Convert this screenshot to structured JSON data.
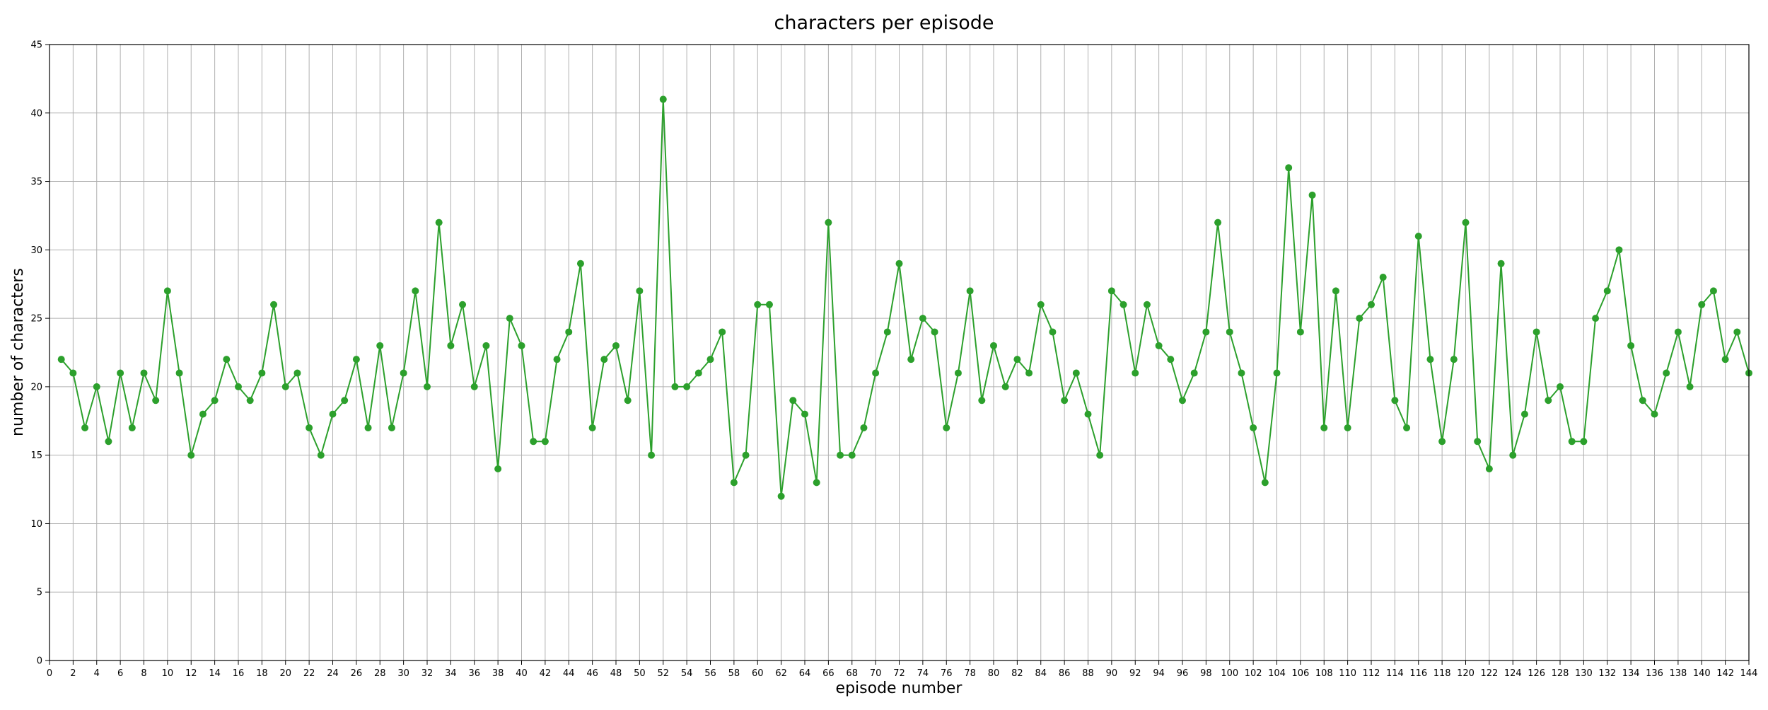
{
  "chart_data": {
    "type": "line",
    "title": "characters per episode",
    "xlabel": "episode number",
    "ylabel": "number of characters",
    "xlim": [
      0,
      144
    ],
    "ylim": [
      0,
      45
    ],
    "grid": true,
    "x_ticks": [
      0,
      2,
      4,
      6,
      8,
      10,
      12,
      14,
      16,
      18,
      20,
      22,
      24,
      26,
      28,
      30,
      32,
      34,
      36,
      38,
      40,
      42,
      44,
      46,
      48,
      50,
      52,
      54,
      56,
      58,
      60,
      62,
      64,
      66,
      68,
      70,
      72,
      74,
      76,
      78,
      80,
      82,
      84,
      86,
      88,
      90,
      92,
      94,
      96,
      98,
      100,
      102,
      104,
      106,
      108,
      110,
      112,
      114,
      116,
      118,
      120,
      122,
      124,
      126,
      128,
      130,
      132,
      134,
      136,
      138,
      140,
      142,
      144
    ],
    "y_ticks": [
      0,
      5,
      10,
      15,
      20,
      25,
      30,
      35,
      40,
      45
    ],
    "line_color": "#2ca02c",
    "series": [
      {
        "x": [
          1,
          2,
          3,
          4,
          5,
          6,
          7,
          8,
          9,
          10,
          11,
          12,
          13,
          14,
          15,
          16,
          17,
          18,
          19,
          20,
          21,
          22,
          23,
          24,
          25,
          26,
          27,
          28,
          29,
          30,
          31,
          32,
          33,
          34,
          35,
          36,
          37,
          38,
          39,
          40,
          41,
          42,
          43,
          44,
          45,
          46,
          47,
          48,
          49,
          50,
          51,
          52,
          53,
          54,
          55,
          56,
          57,
          58,
          59,
          60,
          61,
          62,
          63,
          64,
          65,
          66,
          67,
          68,
          69,
          70,
          71,
          72,
          73,
          74,
          75,
          76,
          77,
          78,
          79,
          80,
          81,
          82,
          83,
          84,
          85,
          86,
          87,
          88,
          89,
          90,
          91,
          92,
          93,
          94,
          95,
          96,
          97,
          98,
          99,
          100,
          101,
          102,
          103,
          104,
          105,
          106,
          107,
          108,
          109,
          110,
          111,
          112,
          113,
          114,
          115,
          116,
          117,
          118,
          119,
          120,
          121,
          122,
          123,
          124,
          125,
          126,
          127,
          128,
          129,
          130,
          131,
          132,
          133,
          134,
          135,
          136,
          137,
          138,
          139,
          140,
          141,
          142,
          143,
          144
        ],
        "values": [
          22,
          21,
          17,
          20,
          16,
          21,
          17,
          21,
          19,
          27,
          21,
          15,
          18,
          19,
          22,
          20,
          19,
          21,
          26,
          20,
          21,
          17,
          15,
          18,
          19,
          22,
          17,
          23,
          17,
          21,
          27,
          20,
          32,
          23,
          26,
          20,
          23,
          14,
          25,
          23,
          16,
          16,
          22,
          24,
          29,
          17,
          22,
          23,
          19,
          27,
          15,
          41,
          20,
          20,
          21,
          22,
          24,
          13,
          15,
          26,
          26,
          12,
          19,
          18,
          13,
          32,
          15,
          15,
          17,
          21,
          24,
          29,
          22,
          25,
          24,
          17,
          21,
          27,
          19,
          23,
          20,
          22,
          21,
          26,
          24,
          19,
          21,
          18,
          15,
          27,
          26,
          21,
          26,
          23,
          22,
          19,
          21,
          24,
          32,
          24,
          21,
          17,
          13,
          21,
          36,
          24,
          34,
          17,
          27,
          17,
          25,
          26,
          28,
          19,
          17,
          31,
          22,
          16,
          22,
          32,
          16,
          14,
          29,
          15,
          18,
          24,
          19,
          20,
          16,
          16,
          25,
          27,
          30,
          23,
          19,
          18,
          21,
          24,
          20,
          26,
          27,
          22,
          24,
          21
        ]
      }
    ]
  }
}
